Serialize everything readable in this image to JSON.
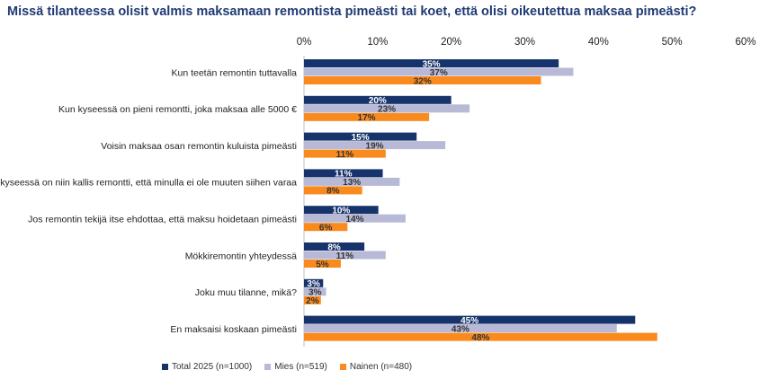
{
  "title": "Missä tilanteessa olisit valmis maksamaan remontista pimeästi tai koet, että olisi oikeutettua maksaa pimeästi?",
  "colors": {
    "total": "#17336b",
    "mies": "#b8b9d6",
    "nainen": "#f98a1d"
  },
  "chart_data": {
    "type": "bar",
    "orientation": "horizontal",
    "xlim": [
      0,
      60
    ],
    "ticks": [
      "0%",
      "10%",
      "20%",
      "30%",
      "40%",
      "50%",
      "60%"
    ],
    "categories": [
      "Kun teetän remontin tuttavalla",
      "Kun kyseessä on pieni remontti, joka maksaa alle 5000 €",
      "Voisin maksaa osan remontin kuluista pimeästi",
      "Kun kyseessä on niin kallis remontti, että minulla ei ole muuten siihen varaa",
      "Jos remontin tekijä itse ehdottaa, että maksu hoidetaan pimeästi",
      "Mökkiremontin yhteydessä",
      "Joku muu tilanne, mikä?",
      "En maksaisi koskaan pimeästi"
    ],
    "series": [
      {
        "name": "Total 2025 (n=1000)",
        "values": [
          34.6,
          20.0,
          15.3,
          10.7,
          10.1,
          8.2,
          2.6,
          45.0
        ],
        "labels": [
          "35%",
          "20%",
          "15%",
          "11%",
          "10%",
          "8%",
          "3%",
          "45%"
        ]
      },
      {
        "name": "Mies (n=519)",
        "values": [
          36.6,
          22.5,
          19.2,
          13.0,
          13.8,
          11.1,
          3.0,
          42.5
        ],
        "labels": [
          "37%",
          "23%",
          "19%",
          "13%",
          "14%",
          "11%",
          "3%",
          "43%"
        ]
      },
      {
        "name": "Nainen (n=480)",
        "values": [
          32.2,
          17.0,
          11.1,
          7.9,
          5.9,
          5.0,
          2.3,
          48.0
        ],
        "labels": [
          "32%",
          "17%",
          "11%",
          "8%",
          "6%",
          "5%",
          "2%",
          "48%"
        ]
      }
    ],
    "grid": false,
    "legend_position": "bottom"
  }
}
